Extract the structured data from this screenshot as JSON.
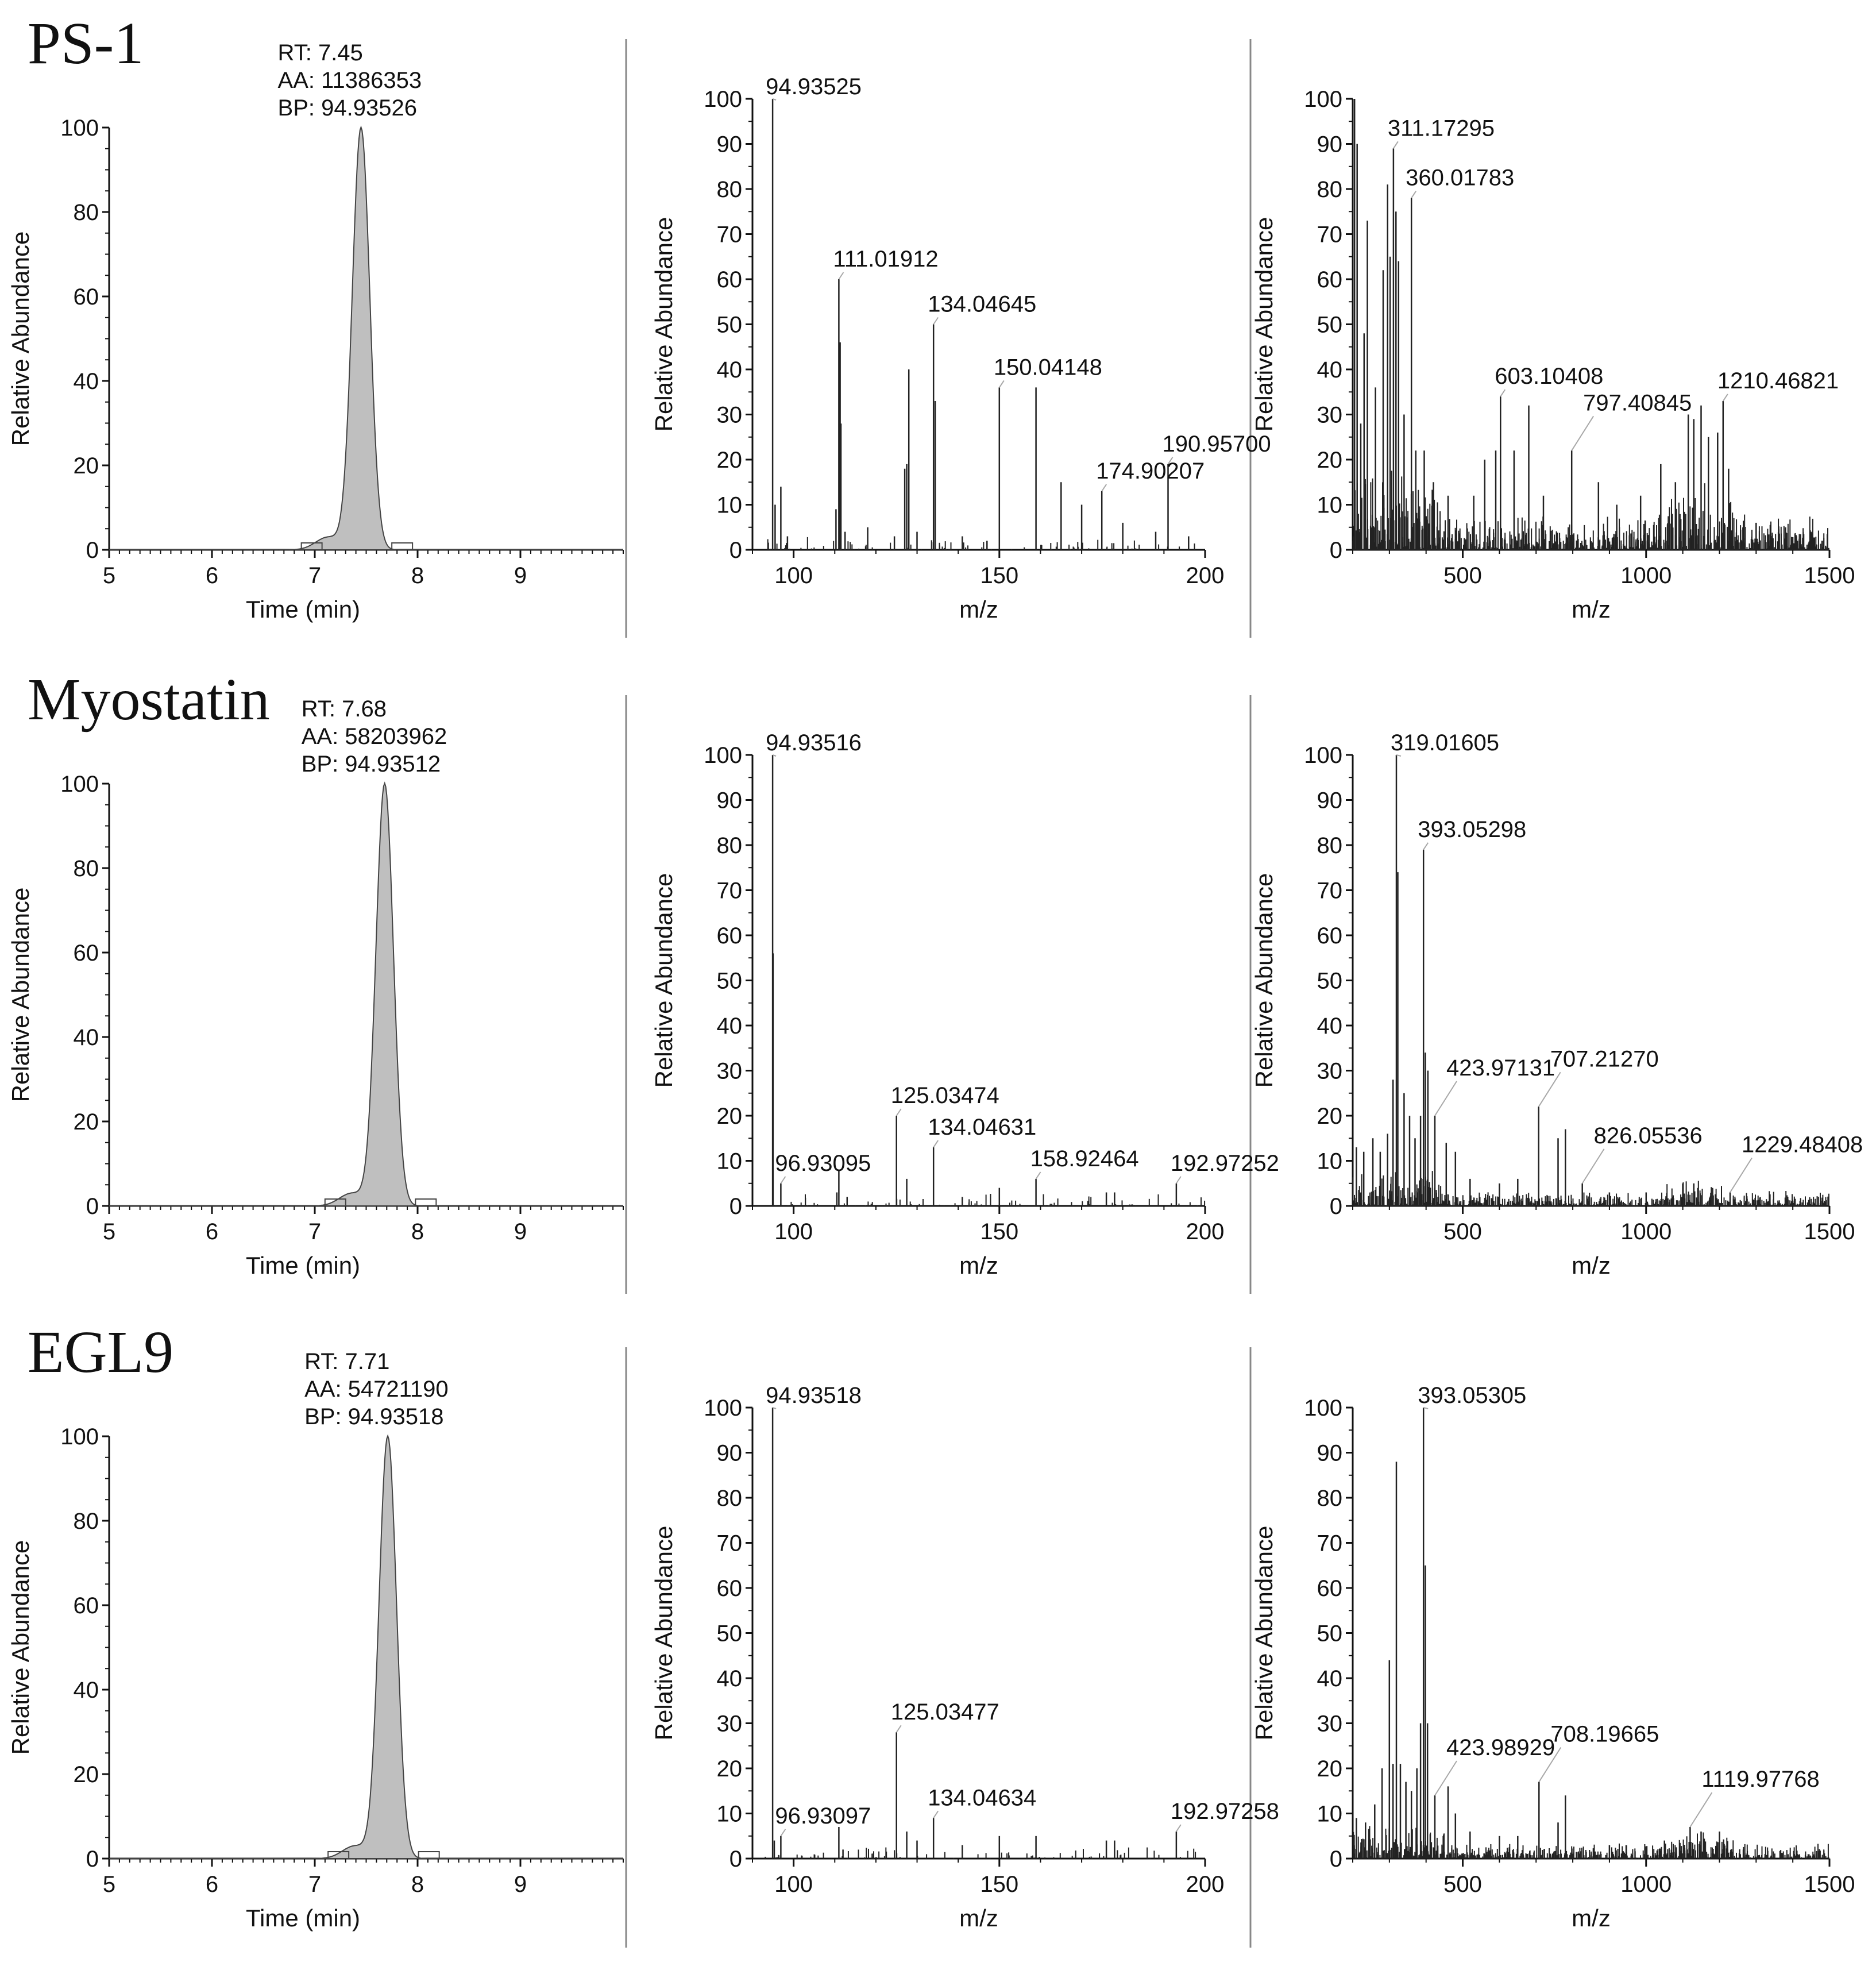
{
  "figure": {
    "colors": {
      "axis": "#111111",
      "peak_fill": "#bfbfbf",
      "peak_stroke": "#444444",
      "stick": "#222222",
      "leader": "#a8a8a8",
      "divider": "#888888"
    },
    "common": {
      "chrom_ylabel": "Relative Abundance",
      "chrom_xlabel": "Time (min)",
      "ms_ylabel": "Relative Abundance",
      "ms_xlabel": "m/z"
    }
  },
  "chart_data": [
    {
      "sample": "PS-1",
      "chromatogram": {
        "type": "area",
        "rt_label": "RT: 7.45",
        "aa_label": "AA: 11386353",
        "bp_label": "BP: 94.93526",
        "apex": 7.45,
        "sigma": 0.085,
        "xlim": [
          5,
          10
        ],
        "ylim": [
          0,
          100
        ],
        "xticks": [
          5,
          6,
          7,
          8,
          9
        ],
        "yticks": [
          0,
          20,
          40,
          60,
          80,
          100
        ],
        "xlabel": "Time (min)",
        "ylabel": "Relative Abundance"
      },
      "spectrum_low": {
        "type": "bar",
        "xlim": [
          90,
          200
        ],
        "ylim": [
          0,
          100
        ],
        "xticks": [
          100,
          150,
          200
        ],
        "yticks": [
          0,
          10,
          20,
          30,
          40,
          50,
          60,
          70,
          80,
          90,
          100
        ],
        "xlabel": "m/z",
        "ylabel": "Relative Abundance",
        "peaks": [
          {
            "x": 94.9,
            "y": 100
          },
          {
            "x": 95.5,
            "y": 10
          },
          {
            "x": 96.9,
            "y": 14
          },
          {
            "x": 98.5,
            "y": 3
          },
          {
            "x": 110.3,
            "y": 9
          },
          {
            "x": 111.0,
            "y": 60
          },
          {
            "x": 111.3,
            "y": 46
          },
          {
            "x": 111.5,
            "y": 28
          },
          {
            "x": 112.5,
            "y": 4
          },
          {
            "x": 118.0,
            "y": 5
          },
          {
            "x": 124.5,
            "y": 3
          },
          {
            "x": 127.0,
            "y": 18
          },
          {
            "x": 127.5,
            "y": 19
          },
          {
            "x": 128.0,
            "y": 40
          },
          {
            "x": 130.0,
            "y": 4
          },
          {
            "x": 134.0,
            "y": 50
          },
          {
            "x": 134.4,
            "y": 33
          },
          {
            "x": 150.0,
            "y": 36
          },
          {
            "x": 158.9,
            "y": 36
          },
          {
            "x": 165.0,
            "y": 15
          },
          {
            "x": 170.0,
            "y": 10
          },
          {
            "x": 174.9,
            "y": 13
          },
          {
            "x": 180.0,
            "y": 6
          },
          {
            "x": 188.0,
            "y": 4
          },
          {
            "x": 191.0,
            "y": 19
          },
          {
            "x": 196.0,
            "y": 3
          },
          {
            "x": 141.0,
            "y": 3
          },
          {
            "x": 147.0,
            "y": 2
          }
        ],
        "labels": [
          {
            "text": "94.93525",
            "x": 94.9,
            "y": 100
          },
          {
            "text": "111.01912",
            "x": 111.0,
            "y": 60
          },
          {
            "text": "134.04645",
            "x": 134.0,
            "y": 50
          },
          {
            "text": "150.04148",
            "x": 150.0,
            "y": 36
          },
          {
            "text": "174.90207",
            "x": 174.9,
            "y": 13
          },
          {
            "text": "190.95700",
            "x": 191.0,
            "y": 19
          }
        ]
      },
      "spectrum_full": {
        "type": "bar",
        "xlim": [
          200,
          1500
        ],
        "ylim": [
          0,
          100
        ],
        "xticks": [
          500,
          1000,
          1500
        ],
        "yticks": [
          0,
          10,
          20,
          30,
          40,
          50,
          60,
          70,
          80,
          90,
          100
        ],
        "xlabel": "m/z",
        "ylabel": "Relative Abundance",
        "peaks": [
          {
            "x": 205,
            "y": 100
          },
          {
            "x": 212,
            "y": 90
          },
          {
            "x": 222,
            "y": 28
          },
          {
            "x": 231,
            "y": 48
          },
          {
            "x": 240,
            "y": 73
          },
          {
            "x": 262,
            "y": 36
          },
          {
            "x": 283,
            "y": 62
          },
          {
            "x": 295,
            "y": 81
          },
          {
            "x": 302,
            "y": 65
          },
          {
            "x": 311,
            "y": 89
          },
          {
            "x": 318,
            "y": 75
          },
          {
            "x": 325,
            "y": 64
          },
          {
            "x": 340,
            "y": 30
          },
          {
            "x": 360,
            "y": 78
          },
          {
            "x": 372,
            "y": 22
          },
          {
            "x": 395,
            "y": 22
          },
          {
            "x": 420,
            "y": 15
          },
          {
            "x": 460,
            "y": 12
          },
          {
            "x": 530,
            "y": 12
          },
          {
            "x": 560,
            "y": 20
          },
          {
            "x": 590,
            "y": 22
          },
          {
            "x": 603,
            "y": 34
          },
          {
            "x": 640,
            "y": 22
          },
          {
            "x": 680,
            "y": 32
          },
          {
            "x": 720,
            "y": 12
          },
          {
            "x": 797,
            "y": 22
          },
          {
            "x": 870,
            "y": 15
          },
          {
            "x": 920,
            "y": 10
          },
          {
            "x": 985,
            "y": 12
          },
          {
            "x": 1040,
            "y": 19
          },
          {
            "x": 1080,
            "y": 15
          },
          {
            "x": 1115,
            "y": 30
          },
          {
            "x": 1130,
            "y": 29
          },
          {
            "x": 1150,
            "y": 32
          },
          {
            "x": 1170,
            "y": 25
          },
          {
            "x": 1195,
            "y": 26
          },
          {
            "x": 1210,
            "y": 33
          },
          {
            "x": 1225,
            "y": 18
          },
          {
            "x": 1300,
            "y": 6
          },
          {
            "x": 1380,
            "y": 5
          },
          {
            "x": 1450,
            "y": 4
          }
        ],
        "noise_ceiling": 12,
        "labels": [
          {
            "text": "311.17295",
            "x": 311,
            "y": 89
          },
          {
            "text": "360.01783",
            "x": 360,
            "y": 78
          },
          {
            "text": "603.10408",
            "x": 603,
            "y": 34
          },
          {
            "text": "797.40845",
            "x": 797,
            "y": 22
          },
          {
            "text": "1210.46821",
            "x": 1210,
            "y": 33
          }
        ]
      }
    },
    {
      "sample": "Myostatin",
      "chromatogram": {
        "type": "area",
        "rt_label": "RT: 7.68",
        "aa_label": "AA: 58203962",
        "bp_label": "BP: 94.93512",
        "apex": 7.68,
        "sigma": 0.085,
        "xlim": [
          5,
          10
        ],
        "ylim": [
          0,
          100
        ],
        "xticks": [
          5,
          6,
          7,
          8,
          9
        ],
        "yticks": [
          0,
          20,
          40,
          60,
          80,
          100
        ],
        "xlabel": "Time (min)",
        "ylabel": "Relative Abundance"
      },
      "spectrum_low": {
        "type": "bar",
        "xlim": [
          90,
          200
        ],
        "ylim": [
          0,
          100
        ],
        "xticks": [
          100,
          150,
          200
        ],
        "yticks": [
          0,
          10,
          20,
          30,
          40,
          50,
          60,
          70,
          80,
          90,
          100
        ],
        "xlabel": "m/z",
        "ylabel": "Relative Abundance",
        "peaks": [
          {
            "x": 94.9,
            "y": 100
          },
          {
            "x": 95.0,
            "y": 56
          },
          {
            "x": 96.9,
            "y": 5
          },
          {
            "x": 110.5,
            "y": 3
          },
          {
            "x": 111.0,
            "y": 8
          },
          {
            "x": 113.0,
            "y": 2
          },
          {
            "x": 125.0,
            "y": 20
          },
          {
            "x": 127.5,
            "y": 6
          },
          {
            "x": 134.0,
            "y": 13
          },
          {
            "x": 150.0,
            "y": 4
          },
          {
            "x": 158.9,
            "y": 6
          },
          {
            "x": 176.0,
            "y": 3
          },
          {
            "x": 178.0,
            "y": 3
          },
          {
            "x": 193.0,
            "y": 5
          },
          {
            "x": 141.0,
            "y": 2
          }
        ],
        "labels": [
          {
            "text": "94.93516",
            "x": 94.9,
            "y": 100
          },
          {
            "text": "96.93095",
            "x": 96.9,
            "y": 5
          },
          {
            "text": "125.03474",
            "x": 125.0,
            "y": 20
          },
          {
            "text": "134.04631",
            "x": 134.0,
            "y": 13
          },
          {
            "text": "158.92464",
            "x": 158.9,
            "y": 6
          },
          {
            "text": "192.97252",
            "x": 193.0,
            "y": 5
          }
        ]
      },
      "spectrum_full": {
        "type": "bar",
        "xlim": [
          200,
          1500
        ],
        "ylim": [
          0,
          100
        ],
        "xticks": [
          500,
          1000,
          1500
        ],
        "yticks": [
          0,
          10,
          20,
          30,
          40,
          50,
          60,
          70,
          80,
          90,
          100
        ],
        "xlabel": "m/z",
        "ylabel": "Relative Abundance",
        "peaks": [
          {
            "x": 210,
            "y": 13
          },
          {
            "x": 230,
            "y": 12
          },
          {
            "x": 255,
            "y": 15
          },
          {
            "x": 275,
            "y": 12
          },
          {
            "x": 295,
            "y": 16
          },
          {
            "x": 310,
            "y": 28
          },
          {
            "x": 319,
            "y": 100
          },
          {
            "x": 323,
            "y": 74
          },
          {
            "x": 340,
            "y": 25
          },
          {
            "x": 355,
            "y": 20
          },
          {
            "x": 370,
            "y": 15
          },
          {
            "x": 385,
            "y": 20
          },
          {
            "x": 393,
            "y": 79
          },
          {
            "x": 398,
            "y": 34
          },
          {
            "x": 405,
            "y": 30
          },
          {
            "x": 424,
            "y": 20
          },
          {
            "x": 455,
            "y": 14
          },
          {
            "x": 480,
            "y": 12
          },
          {
            "x": 520,
            "y": 6
          },
          {
            "x": 600,
            "y": 5
          },
          {
            "x": 650,
            "y": 6
          },
          {
            "x": 707,
            "y": 22
          },
          {
            "x": 760,
            "y": 15
          },
          {
            "x": 780,
            "y": 17
          },
          {
            "x": 826,
            "y": 5
          },
          {
            "x": 900,
            "y": 3
          },
          {
            "x": 1000,
            "y": 3
          },
          {
            "x": 1100,
            "y": 5
          },
          {
            "x": 1130,
            "y": 5
          },
          {
            "x": 1229,
            "y": 3
          }
        ],
        "noise_ceiling": 5,
        "labels": [
          {
            "text": "319.01605",
            "x": 319,
            "y": 100
          },
          {
            "text": "393.05298",
            "x": 393,
            "y": 79
          },
          {
            "text": "423.97131",
            "x": 424,
            "y": 20
          },
          {
            "text": "707.21270",
            "x": 707,
            "y": 22
          },
          {
            "text": "826.05536",
            "x": 826,
            "y": 5
          },
          {
            "text": "1229.48408",
            "x": 1229,
            "y": 3
          }
        ]
      }
    },
    {
      "sample": "EGL9",
      "chromatogram": {
        "type": "area",
        "rt_label": "RT: 7.71",
        "aa_label": "AA: 54721190",
        "bp_label": "BP: 94.93518",
        "apex": 7.71,
        "sigma": 0.085,
        "xlim": [
          5,
          10
        ],
        "ylim": [
          0,
          100
        ],
        "xticks": [
          5,
          6,
          7,
          8,
          9
        ],
        "yticks": [
          0,
          20,
          40,
          60,
          80,
          100
        ],
        "xlabel": "Time (min)",
        "ylabel": "Relative Abundance"
      },
      "spectrum_low": {
        "type": "bar",
        "xlim": [
          90,
          200
        ],
        "ylim": [
          0,
          100
        ],
        "xticks": [
          100,
          150,
          200
        ],
        "yticks": [
          0,
          10,
          20,
          30,
          40,
          50,
          60,
          70,
          80,
          90,
          100
        ],
        "xlabel": "m/z",
        "ylabel": "Relative Abundance",
        "peaks": [
          {
            "x": 94.9,
            "y": 100
          },
          {
            "x": 95.3,
            "y": 4
          },
          {
            "x": 96.9,
            "y": 5
          },
          {
            "x": 111.0,
            "y": 7
          },
          {
            "x": 112.0,
            "y": 2
          },
          {
            "x": 125.0,
            "y": 28
          },
          {
            "x": 127.5,
            "y": 6
          },
          {
            "x": 130.0,
            "y": 4
          },
          {
            "x": 134.0,
            "y": 9
          },
          {
            "x": 141.0,
            "y": 3
          },
          {
            "x": 150.0,
            "y": 5
          },
          {
            "x": 158.9,
            "y": 5
          },
          {
            "x": 176.0,
            "y": 4
          },
          {
            "x": 178.0,
            "y": 4
          },
          {
            "x": 193.0,
            "y": 6
          }
        ],
        "labels": [
          {
            "text": "94.93518",
            "x": 94.9,
            "y": 100
          },
          {
            "text": "96.93097",
            "x": 96.9,
            "y": 5
          },
          {
            "text": "125.03477",
            "x": 125.0,
            "y": 28
          },
          {
            "text": "134.04634",
            "x": 134.0,
            "y": 9
          },
          {
            "text": "192.97258",
            "x": 193.0,
            "y": 6
          }
        ]
      },
      "spectrum_full": {
        "type": "bar",
        "xlim": [
          200,
          1500
        ],
        "ylim": [
          0,
          100
        ],
        "xticks": [
          500,
          1000,
          1500
        ],
        "yticks": [
          0,
          10,
          20,
          30,
          40,
          50,
          60,
          70,
          80,
          90,
          100
        ],
        "xlabel": "m/z",
        "ylabel": "Relative Abundance",
        "peaks": [
          {
            "x": 210,
            "y": 9
          },
          {
            "x": 235,
            "y": 8
          },
          {
            "x": 260,
            "y": 12
          },
          {
            "x": 280,
            "y": 20
          },
          {
            "x": 300,
            "y": 44
          },
          {
            "x": 310,
            "y": 21
          },
          {
            "x": 319,
            "y": 88
          },
          {
            "x": 330,
            "y": 21
          },
          {
            "x": 345,
            "y": 17
          },
          {
            "x": 360,
            "y": 15
          },
          {
            "x": 375,
            "y": 20
          },
          {
            "x": 385,
            "y": 30
          },
          {
            "x": 393,
            "y": 100
          },
          {
            "x": 398,
            "y": 65
          },
          {
            "x": 404,
            "y": 30
          },
          {
            "x": 424,
            "y": 14
          },
          {
            "x": 460,
            "y": 16
          },
          {
            "x": 480,
            "y": 10
          },
          {
            "x": 520,
            "y": 6
          },
          {
            "x": 600,
            "y": 5
          },
          {
            "x": 650,
            "y": 5
          },
          {
            "x": 708,
            "y": 17
          },
          {
            "x": 760,
            "y": 8
          },
          {
            "x": 780,
            "y": 14
          },
          {
            "x": 900,
            "y": 3
          },
          {
            "x": 1050,
            "y": 4
          },
          {
            "x": 1120,
            "y": 7
          },
          {
            "x": 1150,
            "y": 6
          },
          {
            "x": 1200,
            "y": 6
          }
        ],
        "noise_ceiling": 5,
        "labels": [
          {
            "text": "393.05305",
            "x": 393,
            "y": 100
          },
          {
            "text": "423.98929",
            "x": 424,
            "y": 14
          },
          {
            "text": "708.19665",
            "x": 708,
            "y": 17
          },
          {
            "text": "1119.97768",
            "x": 1120,
            "y": 7
          }
        ]
      }
    }
  ]
}
